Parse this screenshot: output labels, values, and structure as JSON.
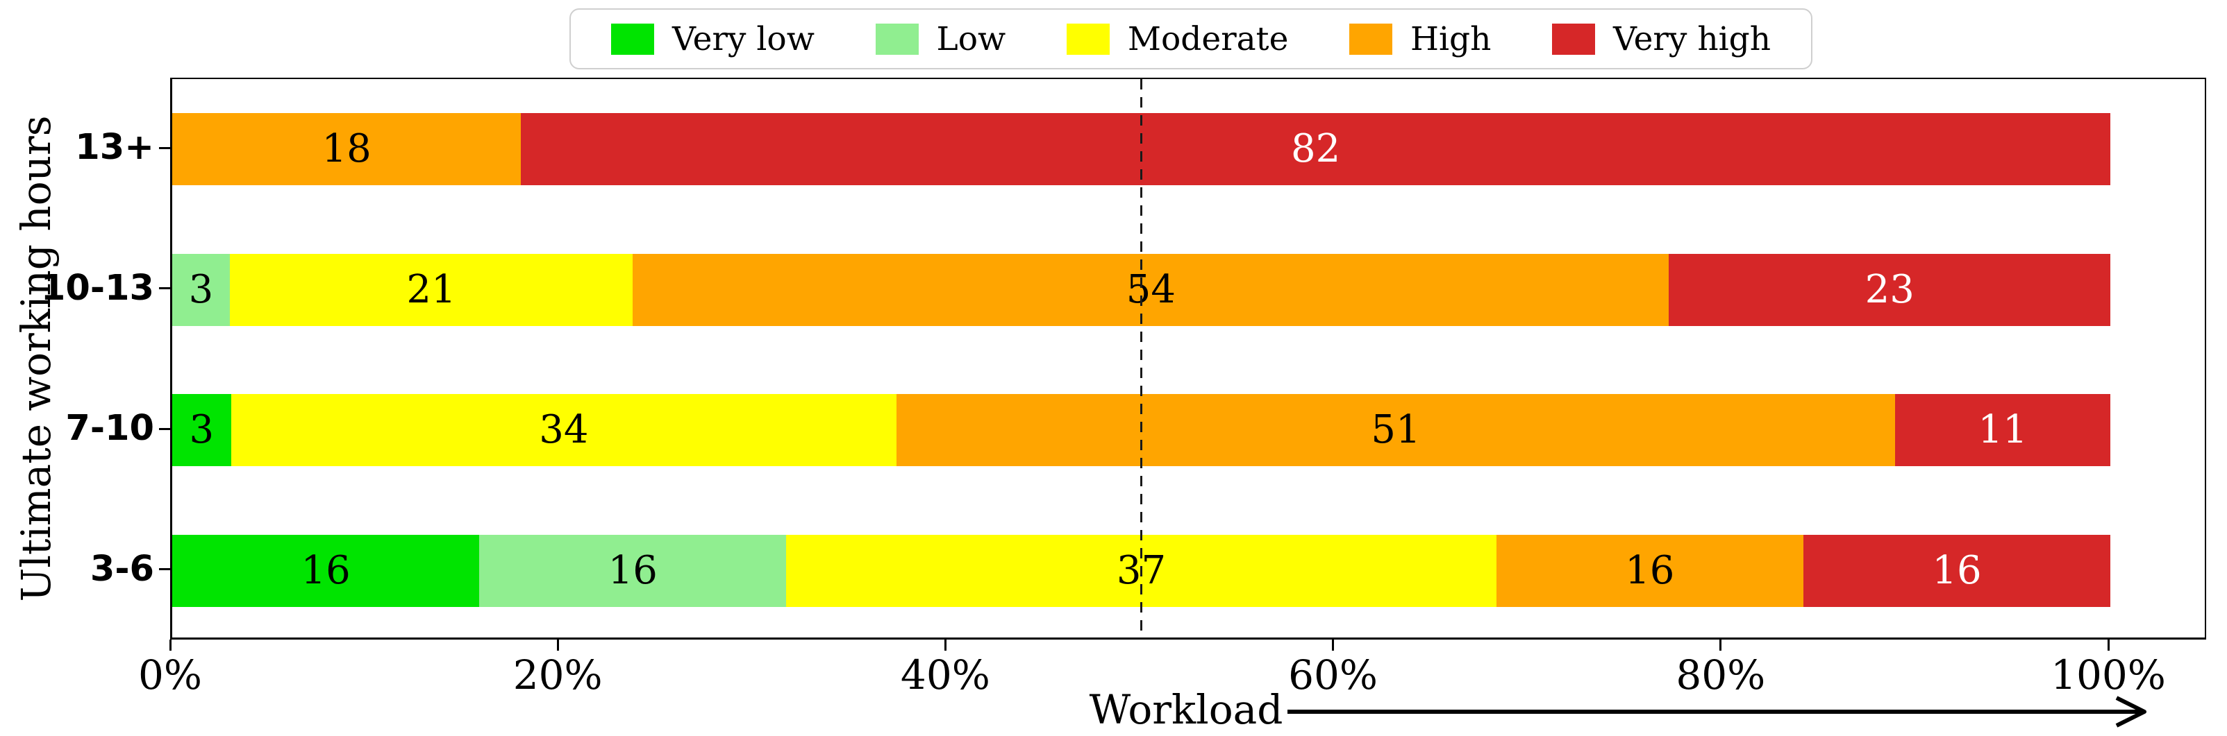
{
  "chart_data": {
    "type": "stacked_barh_percent",
    "title": "",
    "xlabel": "Workload",
    "ylabel": "Ultimate working hours",
    "x_tick_labels": [
      "0%",
      "20%",
      "40%",
      "60%",
      "80%",
      "100%"
    ],
    "x_range_pct": [
      0,
      100
    ],
    "grid": {
      "vertical_dashed_line_at_pct": 50,
      "color": "#1a1a1a",
      "style": "dashed",
      "drawn_over_bars": true
    },
    "legend": {
      "position": "top-center",
      "entries": [
        {
          "label": "Very low",
          "color": "#00E400"
        },
        {
          "label": "Low",
          "color": "#90EE90"
        },
        {
          "label": "Moderate",
          "color": "#FFFF00"
        },
        {
          "label": "High",
          "color": "#FFA500"
        },
        {
          "label": "Very high",
          "color": "#D62728"
        }
      ]
    },
    "categories": [
      "13+",
      "10-13",
      "7-10",
      "3-6"
    ],
    "series": [
      {
        "name": "Very low",
        "color": "#00E400",
        "label_color": "#000000",
        "values": [
          0,
          0,
          3,
          16
        ]
      },
      {
        "name": "Low",
        "color": "#90EE90",
        "label_color": "#000000",
        "values": [
          0,
          3,
          0,
          16
        ]
      },
      {
        "name": "Moderate",
        "color": "#FFFF00",
        "label_color": "#000000",
        "values": [
          0,
          21,
          34,
          37
        ]
      },
      {
        "name": "High",
        "color": "#FFA500",
        "label_color": "#000000",
        "values": [
          18,
          54,
          51,
          16
        ]
      },
      {
        "name": "Very high",
        "color": "#D62728",
        "label_color": "#FFFFFF",
        "values": [
          82,
          23,
          11,
          16
        ]
      }
    ]
  }
}
